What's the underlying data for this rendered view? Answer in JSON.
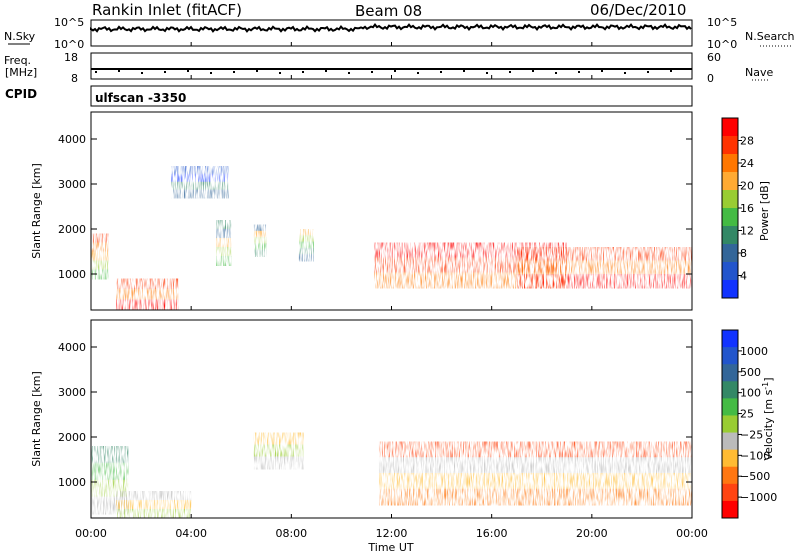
{
  "header": {
    "station": "Rankin Inlet (fitACF)",
    "beam": "Beam 08",
    "date": "06/Dec/2010"
  },
  "noise_panel": {
    "left_label": "N.Sky",
    "right_label": "N.Search",
    "left_ticks": [
      "10^5",
      "10^0"
    ],
    "right_ticks": [
      "10^5",
      "10^0"
    ]
  },
  "freq_panel": {
    "left_label": "Freq.",
    "left_unit": "[MHz]",
    "right_label": "Nave",
    "left_ticks": [
      "18",
      "8"
    ],
    "right_ticks": [
      "60",
      "0"
    ]
  },
  "cpid": {
    "label": "CPID",
    "value": "ulfscan  -3350"
  },
  "x_axis": {
    "label": "Time UT",
    "ticks": [
      "00:00",
      "04:00",
      "08:00",
      "12:00",
      "16:00",
      "20:00",
      "00:00"
    ]
  },
  "chart_data": [
    {
      "type": "heatmap",
      "title": "Power",
      "ylabel": "Slant Range [km]",
      "xlabel": "Time UT",
      "y_ticks": [
        "1000",
        "2000",
        "3000",
        "4000"
      ],
      "ylim": [
        200,
        4600
      ],
      "xlim": [
        0,
        24
      ],
      "colorbar": {
        "label": "Power [dB]",
        "ticks": [
          "28",
          "24",
          "20",
          "16",
          "12",
          "8",
          "4"
        ],
        "colors": [
          "#ff0000",
          "#ff3300",
          "#ff7700",
          "#ffaa33",
          "#99cc33",
          "#44bb44",
          "#338866",
          "#336699",
          "#2255cc",
          "#1133ff"
        ]
      },
      "regions": [
        {
          "t0": 0.0,
          "t1": 0.7,
          "r0": 900,
          "r1": 1900,
          "level": "mid-high"
        },
        {
          "t0": 1.0,
          "t1": 3.5,
          "r0": 200,
          "r1": 900,
          "level": "high"
        },
        {
          "t0": 3.2,
          "t1": 5.5,
          "r0": 2700,
          "r1": 3400,
          "level": "low"
        },
        {
          "t0": 5.0,
          "t1": 5.6,
          "r0": 1200,
          "r1": 2200,
          "level": "mid"
        },
        {
          "t0": 6.5,
          "t1": 7.0,
          "r0": 1400,
          "r1": 2100,
          "level": "mid"
        },
        {
          "t0": 8.3,
          "t1": 8.9,
          "r0": 1300,
          "r1": 2000,
          "level": "mid"
        },
        {
          "t0": 11.3,
          "t1": 19.0,
          "r0": 700,
          "r1": 1700,
          "level": "high"
        },
        {
          "t0": 17.0,
          "t1": 24.0,
          "r0": 700,
          "r1": 1600,
          "level": "high"
        }
      ]
    },
    {
      "type": "heatmap",
      "title": "Velocity",
      "ylabel": "Slant Range [km]",
      "xlabel": "Time UT",
      "y_ticks": [
        "1000",
        "2000",
        "3000",
        "4000"
      ],
      "ylim": [
        200,
        4600
      ],
      "xlim": [
        0,
        24
      ],
      "colorbar": {
        "label": "Velocity [m s",
        "label_sup": "-1",
        "ticks": [
          "1000",
          "500",
          "100",
          "25",
          "−25",
          "−100",
          "−500",
          "−1000"
        ],
        "colors": [
          "#1133ff",
          "#2255cc",
          "#336699",
          "#338866",
          "#44bb44",
          "#99cc33",
          "#bbbbbb",
          "#ffbb33",
          "#ff7711",
          "#ff4411",
          "#ff0000"
        ]
      },
      "regions": [
        {
          "t0": 0.0,
          "t1": 1.5,
          "r0": 300,
          "r1": 1800,
          "level": "toward-small"
        },
        {
          "t0": 1.0,
          "t1": 4.0,
          "r0": 200,
          "r1": 800,
          "level": "toward"
        },
        {
          "t0": 6.5,
          "t1": 8.5,
          "r0": 1300,
          "r1": 2100,
          "level": "toward"
        },
        {
          "t0": 11.5,
          "t1": 24.0,
          "r0": 500,
          "r1": 1900,
          "level": "away"
        }
      ]
    }
  ]
}
